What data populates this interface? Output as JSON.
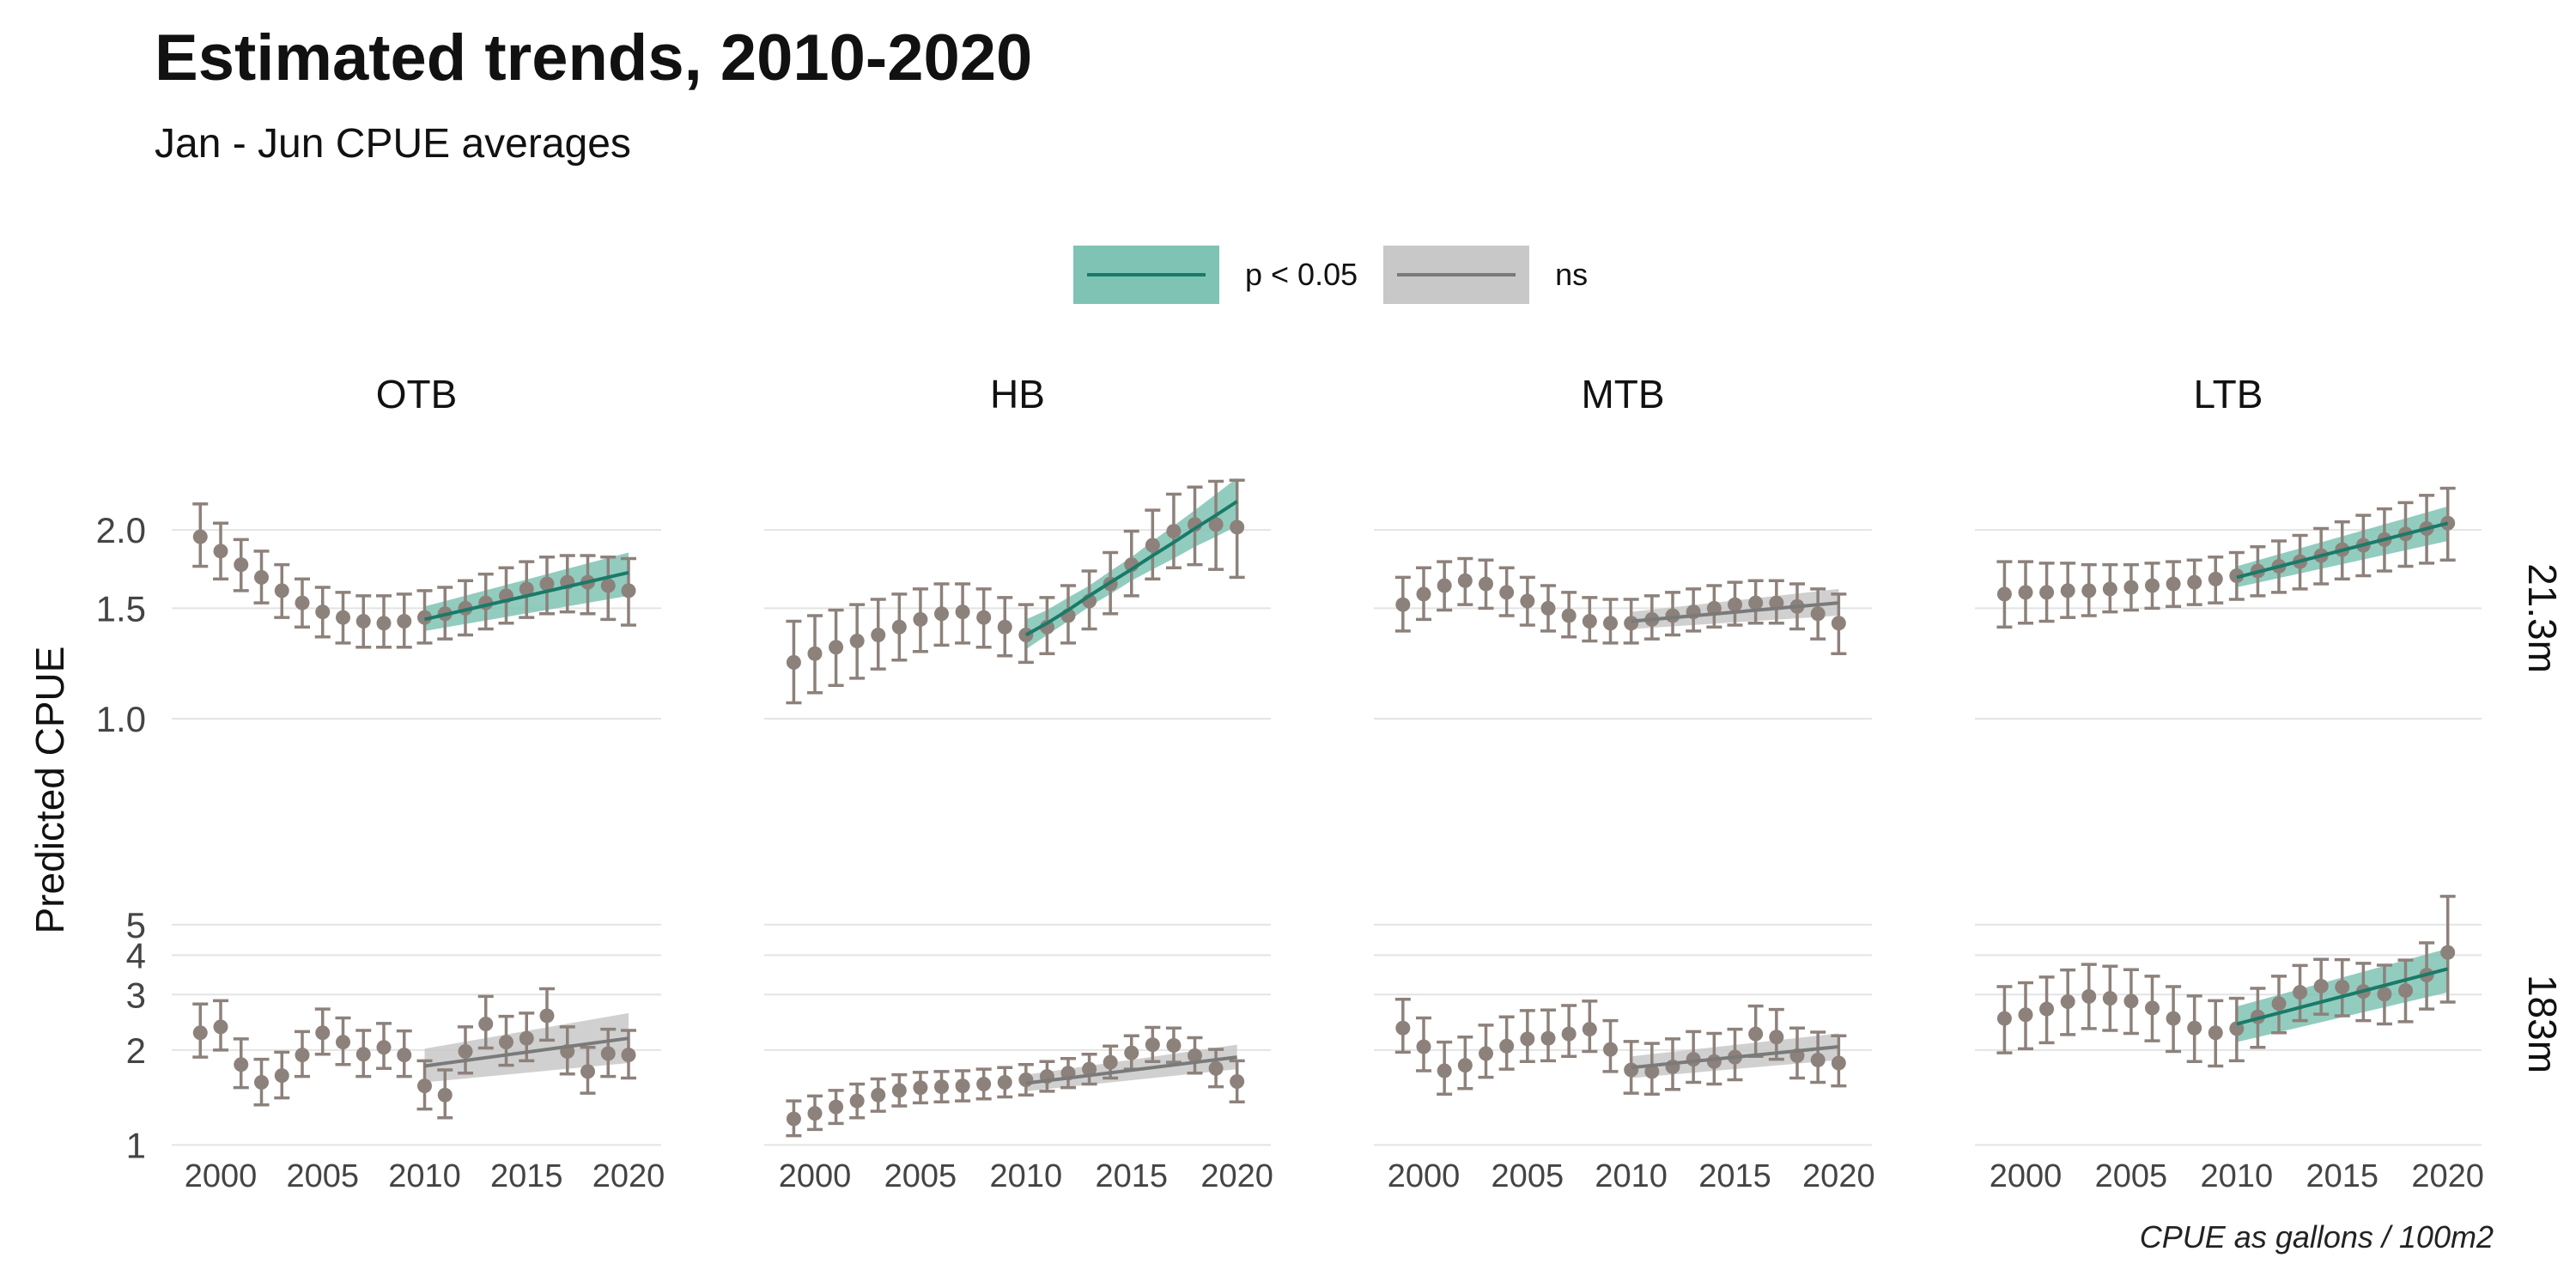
{
  "title": "Estimated trends, 2010-2020",
  "subtitle": "Jan - Jun CPUE averages",
  "caption": "CPUE as gallons / 100m2",
  "colors": {
    "points": "#8d817b",
    "sig_line": "#1a7a68",
    "sig_band": "#7fc3b4",
    "ns_line": "#7a7a7a",
    "ns_band": "#c8c8c8",
    "grid": "#e4e4e4"
  },
  "legend": {
    "items": [
      {
        "label": "p < 0.05",
        "kind": "sig"
      },
      {
        "label": "ns",
        "kind": "ns"
      }
    ]
  },
  "chart_data": {
    "type": "scatter",
    "ylabel": "Predicted CPUE",
    "xlabel": "",
    "columns": [
      "OTB",
      "HB",
      "MTB",
      "LTB"
    ],
    "rows": [
      "21.3m",
      "183m"
    ],
    "x_ticks": [
      2000,
      2005,
      2010,
      2015,
      2020
    ],
    "xlim": [
      1997.6,
      2021.6
    ],
    "row_axes": {
      "21.3m": {
        "scale": "log",
        "ylim": [
          0.82,
          2.55
        ],
        "ticks": [
          1.0,
          1.5,
          2.0
        ],
        "tick_labels": [
          "1.0",
          "1.5",
          "2.0"
        ]
      },
      "183m": {
        "scale": "log",
        "ylim": [
          0.93,
          6.3
        ],
        "ticks": [
          1,
          2,
          3,
          4,
          5
        ],
        "tick_labels": [
          "1",
          "2",
          "3",
          "4",
          "5"
        ]
      }
    },
    "years": [
      1999,
      2000,
      2001,
      2002,
      2003,
      2004,
      2005,
      2006,
      2007,
      2008,
      2009,
      2010,
      2011,
      2012,
      2013,
      2014,
      2015,
      2016,
      2017,
      2018,
      2019,
      2020
    ],
    "panels": [
      {
        "row": "21.3m",
        "col": "OTB",
        "trend": "sig",
        "mean": [
          1.95,
          1.85,
          1.76,
          1.68,
          1.6,
          1.53,
          1.48,
          1.45,
          1.43,
          1.42,
          1.43,
          1.45,
          1.47,
          1.5,
          1.53,
          1.57,
          1.61,
          1.64,
          1.65,
          1.65,
          1.63,
          1.6
        ],
        "lower": [
          1.75,
          1.67,
          1.6,
          1.53,
          1.45,
          1.4,
          1.35,
          1.32,
          1.3,
          1.3,
          1.3,
          1.32,
          1.34,
          1.36,
          1.39,
          1.42,
          1.45,
          1.47,
          1.48,
          1.47,
          1.44,
          1.41
        ],
        "upper": [
          2.2,
          2.05,
          1.93,
          1.85,
          1.76,
          1.67,
          1.62,
          1.59,
          1.57,
          1.57,
          1.58,
          1.6,
          1.62,
          1.66,
          1.7,
          1.74,
          1.78,
          1.81,
          1.82,
          1.82,
          1.81,
          1.8
        ],
        "fit": {
          "years": [
            2010,
            2020
          ],
          "mid": [
            1.44,
            1.71
          ],
          "lo": [
            1.38,
            1.57
          ],
          "hi": [
            1.51,
            1.84
          ]
        }
      },
      {
        "row": "21.3m",
        "col": "HB",
        "trend": "sig",
        "mean": [
          1.23,
          1.27,
          1.3,
          1.33,
          1.36,
          1.4,
          1.44,
          1.47,
          1.48,
          1.45,
          1.4,
          1.36,
          1.4,
          1.46,
          1.54,
          1.64,
          1.76,
          1.89,
          1.99,
          2.04,
          2.04,
          2.02
        ],
        "lower": [
          1.06,
          1.1,
          1.13,
          1.16,
          1.2,
          1.24,
          1.28,
          1.31,
          1.32,
          1.3,
          1.26,
          1.23,
          1.27,
          1.32,
          1.39,
          1.47,
          1.57,
          1.67,
          1.74,
          1.76,
          1.73,
          1.68
        ],
        "upper": [
          1.43,
          1.46,
          1.49,
          1.52,
          1.55,
          1.58,
          1.61,
          1.64,
          1.64,
          1.61,
          1.56,
          1.52,
          1.56,
          1.63,
          1.72,
          1.84,
          1.99,
          2.15,
          2.28,
          2.34,
          2.39,
          2.4
        ],
        "fit": {
          "years": [
            2010,
            2011,
            2012,
            2013,
            2014,
            2015,
            2016,
            2017,
            2018,
            2019,
            2020
          ],
          "mid": [
            1.36,
            1.42,
            1.49,
            1.57,
            1.65,
            1.73,
            1.82,
            1.91,
            2.01,
            2.11,
            2.22
          ],
          "lo": [
            1.29,
            1.36,
            1.43,
            1.51,
            1.58,
            1.66,
            1.73,
            1.8,
            1.88,
            1.95,
            2.03
          ],
          "hi": [
            1.44,
            1.49,
            1.56,
            1.63,
            1.72,
            1.81,
            1.92,
            2.03,
            2.15,
            2.28,
            2.42
          ]
        }
      },
      {
        "row": "21.3m",
        "col": "MTB",
        "trend": "ns",
        "mean": [
          1.52,
          1.58,
          1.63,
          1.66,
          1.64,
          1.59,
          1.54,
          1.5,
          1.46,
          1.43,
          1.42,
          1.42,
          1.44,
          1.46,
          1.48,
          1.5,
          1.52,
          1.53,
          1.53,
          1.51,
          1.47,
          1.42
        ],
        "lower": [
          1.38,
          1.44,
          1.49,
          1.52,
          1.5,
          1.46,
          1.41,
          1.38,
          1.35,
          1.33,
          1.32,
          1.32,
          1.34,
          1.36,
          1.38,
          1.4,
          1.41,
          1.42,
          1.42,
          1.39,
          1.34,
          1.27
        ],
        "upper": [
          1.68,
          1.74,
          1.78,
          1.8,
          1.79,
          1.74,
          1.68,
          1.63,
          1.59,
          1.56,
          1.55,
          1.55,
          1.57,
          1.59,
          1.61,
          1.63,
          1.65,
          1.66,
          1.66,
          1.64,
          1.61,
          1.58
        ],
        "fit": {
          "years": [
            2010,
            2020
          ],
          "mid": [
            1.43,
            1.53
          ],
          "lo": [
            1.39,
            1.46
          ],
          "hi": [
            1.48,
            1.61
          ]
        }
      },
      {
        "row": "21.3m",
        "col": "LTB",
        "trend": "sig",
        "mean": [
          1.58,
          1.59,
          1.59,
          1.6,
          1.6,
          1.61,
          1.62,
          1.63,
          1.64,
          1.65,
          1.67,
          1.69,
          1.72,
          1.75,
          1.78,
          1.82,
          1.86,
          1.89,
          1.93,
          1.97,
          2.01,
          2.05
        ],
        "lower": [
          1.4,
          1.42,
          1.43,
          1.45,
          1.46,
          1.48,
          1.49,
          1.5,
          1.51,
          1.52,
          1.53,
          1.55,
          1.57,
          1.59,
          1.61,
          1.64,
          1.67,
          1.69,
          1.72,
          1.75,
          1.77,
          1.79
        ],
        "upper": [
          1.78,
          1.78,
          1.77,
          1.77,
          1.76,
          1.76,
          1.76,
          1.77,
          1.78,
          1.79,
          1.81,
          1.84,
          1.88,
          1.92,
          1.96,
          2.01,
          2.06,
          2.11,
          2.16,
          2.21,
          2.27,
          2.33
        ],
        "fit": {
          "years": [
            2010,
            2020
          ],
          "mid": [
            1.68,
            2.05
          ],
          "lo": [
            1.62,
            1.92
          ],
          "hi": [
            1.75,
            2.18
          ]
        }
      },
      {
        "row": "183m",
        "col": "OTB",
        "trend": "ns",
        "mean": [
          2.27,
          2.37,
          1.8,
          1.58,
          1.66,
          1.93,
          2.27,
          2.12,
          1.94,
          2.04,
          1.93,
          1.54,
          1.44,
          1.98,
          2.42,
          2.12,
          2.18,
          2.57,
          1.98,
          1.71,
          1.95,
          1.93
        ],
        "lower": [
          1.9,
          2.0,
          1.52,
          1.34,
          1.41,
          1.65,
          1.94,
          1.8,
          1.65,
          1.75,
          1.65,
          1.3,
          1.22,
          1.69,
          2.03,
          1.79,
          1.85,
          2.15,
          1.68,
          1.46,
          1.65,
          1.63
        ],
        "upper": [
          2.8,
          2.87,
          2.17,
          1.87,
          1.97,
          2.29,
          2.7,
          2.53,
          2.31,
          2.43,
          2.3,
          1.85,
          1.73,
          2.37,
          2.96,
          2.56,
          2.62,
          3.13,
          2.37,
          2.04,
          2.33,
          2.31
        ],
        "fit": {
          "years": [
            2010,
            2020
          ],
          "mid": [
            1.78,
            2.18
          ],
          "lo": [
            1.58,
            1.82
          ],
          "hi": [
            2.02,
            2.62
          ]
        }
      },
      {
        "row": "183m",
        "col": "HB",
        "trend": "ns",
        "mean": [
          1.21,
          1.26,
          1.32,
          1.38,
          1.44,
          1.49,
          1.52,
          1.53,
          1.54,
          1.56,
          1.58,
          1.61,
          1.65,
          1.69,
          1.74,
          1.83,
          1.96,
          2.08,
          2.07,
          1.92,
          1.75,
          1.59
        ],
        "lower": [
          1.07,
          1.12,
          1.17,
          1.22,
          1.28,
          1.33,
          1.36,
          1.37,
          1.38,
          1.4,
          1.42,
          1.44,
          1.48,
          1.52,
          1.56,
          1.63,
          1.74,
          1.84,
          1.83,
          1.69,
          1.53,
          1.37
        ],
        "upper": [
          1.38,
          1.43,
          1.49,
          1.56,
          1.62,
          1.67,
          1.7,
          1.71,
          1.72,
          1.74,
          1.76,
          1.8,
          1.84,
          1.88,
          1.94,
          2.06,
          2.22,
          2.36,
          2.35,
          2.19,
          2.01,
          1.85
        ],
        "fit": {
          "years": [
            2010,
            2020
          ],
          "mid": [
            1.57,
            1.9
          ],
          "lo": [
            1.48,
            1.74
          ],
          "hi": [
            1.67,
            2.08
          ]
        }
      },
      {
        "row": "183m",
        "col": "MTB",
        "trend": "ns",
        "mean": [
          2.35,
          2.05,
          1.72,
          1.79,
          1.95,
          2.06,
          2.17,
          2.18,
          2.25,
          2.33,
          2.01,
          1.73,
          1.71,
          1.77,
          1.87,
          1.84,
          1.9,
          2.25,
          2.2,
          1.92,
          1.86,
          1.82
        ],
        "lower": [
          1.97,
          1.72,
          1.45,
          1.51,
          1.64,
          1.74,
          1.84,
          1.85,
          1.91,
          1.98,
          1.71,
          1.46,
          1.45,
          1.5,
          1.58,
          1.56,
          1.61,
          1.91,
          1.87,
          1.63,
          1.58,
          1.54
        ],
        "upper": [
          2.9,
          2.53,
          2.12,
          2.2,
          2.4,
          2.55,
          2.67,
          2.68,
          2.77,
          2.86,
          2.48,
          2.13,
          2.1,
          2.17,
          2.29,
          2.26,
          2.33,
          2.76,
          2.69,
          2.35,
          2.28,
          2.22
        ],
        "fit": {
          "years": [
            2010,
            2020
          ],
          "mid": [
            1.76,
            2.05
          ],
          "lo": [
            1.63,
            1.86
          ],
          "hi": [
            1.91,
            2.26
          ]
        }
      },
      {
        "row": "183m",
        "col": "LTB",
        "trend": "sig",
        "mean": [
          2.52,
          2.59,
          2.7,
          2.85,
          2.96,
          2.92,
          2.86,
          2.72,
          2.52,
          2.35,
          2.27,
          2.34,
          2.55,
          2.81,
          3.05,
          3.19,
          3.17,
          3.07,
          3.01,
          3.09,
          3.46,
          4.08
        ],
        "lower": [
          1.96,
          2.02,
          2.11,
          2.24,
          2.34,
          2.31,
          2.26,
          2.14,
          1.98,
          1.84,
          1.78,
          1.85,
          2.04,
          2.27,
          2.48,
          2.6,
          2.57,
          2.48,
          2.42,
          2.46,
          2.7,
          2.84
        ],
        "upper": [
          3.18,
          3.27,
          3.41,
          3.59,
          3.74,
          3.69,
          3.6,
          3.43,
          3.18,
          2.97,
          2.87,
          2.92,
          3.14,
          3.43,
          3.71,
          3.88,
          3.87,
          3.77,
          3.72,
          3.86,
          4.38,
          6.15
        ],
        "fit": {
          "years": [
            2010,
            2020
          ],
          "mid": [
            2.42,
            3.62
          ],
          "lo": [
            2.12,
            3.05
          ],
          "hi": [
            2.75,
            4.2
          ]
        }
      }
    ]
  }
}
